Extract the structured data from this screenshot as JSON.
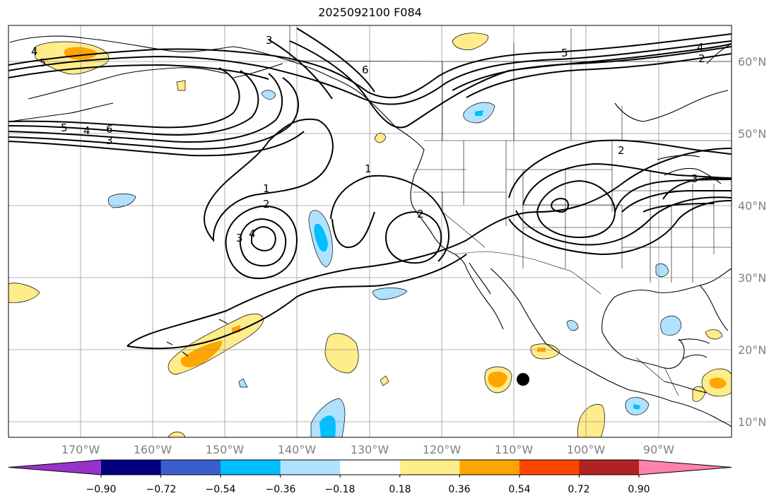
{
  "title": "2025092100 F084",
  "longitude_labels": [
    "170°W",
    "160°W",
    "150°W",
    "140°W",
    "130°W",
    "120°W",
    "110°W",
    "100°W",
    "90°W"
  ],
  "latitude_labels": [
    "60°N",
    "50°N",
    "40°N",
    "30°N",
    "20°N",
    "10°N"
  ],
  "colorbar": {
    "ticks": [
      "−0.90",
      "−0.72",
      "−0.54",
      "−0.36",
      "−0.18",
      "0.18",
      "0.36",
      "0.54",
      "0.72",
      "0.90"
    ],
    "colors": [
      "#9932cc",
      "#000080",
      "#3a5fcd",
      "#00bfff",
      "#b0e2ff",
      "#ffffff",
      "#ffec8b",
      "#ffa500",
      "#ff4500",
      "#b22222",
      "#ff82ab"
    ]
  },
  "contour_labels": [
    "4",
    "5",
    "5",
    "4",
    "6",
    "3",
    "3",
    "5",
    "6",
    "4",
    "2",
    "1",
    "1",
    "2",
    "3",
    "4",
    "2",
    "2",
    "3"
  ],
  "storm_marker": "black-dot"
}
